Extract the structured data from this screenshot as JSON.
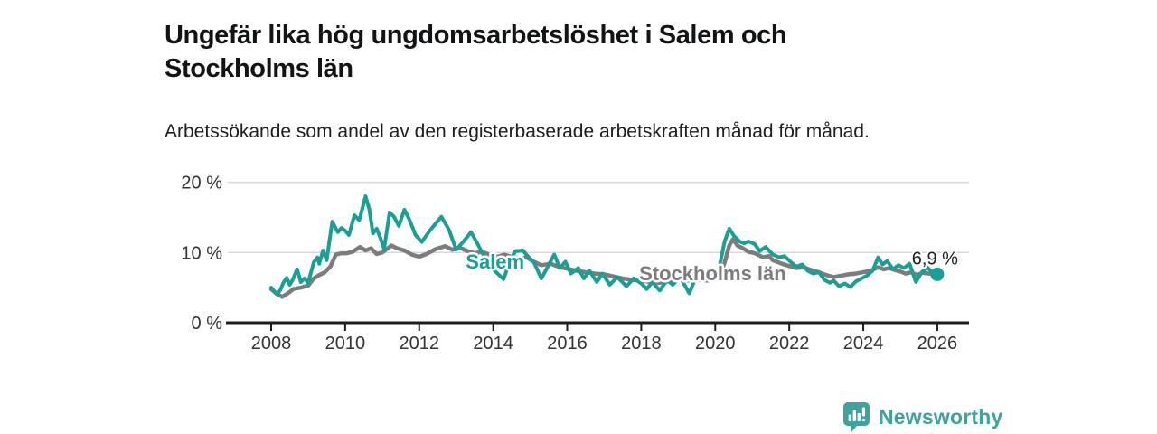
{
  "header": {
    "title": "Ungefär lika hög ungdomsarbetslöshet i Salem och Stockholms län",
    "subtitle": "Arbetssökande som andel av den registerbaserade arbetskraften månad för månad."
  },
  "colors": {
    "salem_teal": "#18a096",
    "stockholm_gray": "#7c7c7c",
    "grid": "#d9d9d9",
    "axis": "#1c1c1c",
    "tick_label": "#333333",
    "brand_teal": "#3da39c"
  },
  "chart": {
    "y_ticks": [
      {
        "value": 0,
        "label": "0 %"
      },
      {
        "value": 10,
        "label": "10 %"
      },
      {
        "value": 20,
        "label": "20 %"
      }
    ],
    "x_ticks": [
      {
        "value": 2008,
        "label": "2008"
      },
      {
        "value": 2010,
        "label": "2010"
      },
      {
        "value": 2012,
        "label": "2012"
      },
      {
        "value": 2014,
        "label": "2014"
      },
      {
        "value": 2016,
        "label": "2016"
      },
      {
        "value": 2018,
        "label": "2018"
      },
      {
        "value": 2020,
        "label": "2020"
      },
      {
        "value": 2022,
        "label": "2022"
      },
      {
        "value": 2024,
        "label": "2024"
      },
      {
        "value": 2026,
        "label": "2026"
      }
    ],
    "series_labels": [
      {
        "text": "Salem",
        "x": 2014.05,
        "baseline_value": 7.75,
        "color": "#18a096"
      },
      {
        "text": "Stockholms län",
        "x": 2019.93,
        "baseline_value": 6.05,
        "color": "#7c7c7c"
      }
    ],
    "end_label": {
      "text": "6,9 %",
      "x": 2026.05,
      "value": 8.3
    }
  },
  "chart_data": {
    "type": "line",
    "title": "Ungefär lika hög ungdomsarbetslöshet i Salem och Stockholms län",
    "subtitle": "Arbetssökande som andel av den registerbaserade arbetskraften månad för månad.",
    "unit": "%",
    "xlim": [
      2006.9,
      2026.8
    ],
    "ylim": [
      0,
      20
    ],
    "grid": true,
    "legend_position": "inline-labels",
    "end_point": {
      "series": "Salem",
      "x": 2026.0,
      "y": 6.9,
      "label": "6,9 %"
    },
    "series": [
      {
        "name": "Salem",
        "color": "#18a096",
        "points": [
          [
            2008.0,
            5.0
          ],
          [
            2008.1,
            4.4
          ],
          [
            2008.17,
            4.1
          ],
          [
            2008.25,
            4.7
          ],
          [
            2008.33,
            5.7
          ],
          [
            2008.42,
            6.4
          ],
          [
            2008.5,
            5.4
          ],
          [
            2008.58,
            6.1
          ],
          [
            2008.7,
            7.6
          ],
          [
            2008.8,
            5.8
          ],
          [
            2008.9,
            6.3
          ],
          [
            2009.0,
            5.7
          ],
          [
            2009.15,
            8.6
          ],
          [
            2009.25,
            9.3
          ],
          [
            2009.3,
            8.4
          ],
          [
            2009.4,
            10.3
          ],
          [
            2009.5,
            8.9
          ],
          [
            2009.65,
            14.4
          ],
          [
            2009.8,
            12.9
          ],
          [
            2009.9,
            13.5
          ],
          [
            2010.0,
            13.1
          ],
          [
            2010.1,
            12.5
          ],
          [
            2010.25,
            15.3
          ],
          [
            2010.38,
            14.6
          ],
          [
            2010.55,
            18.0
          ],
          [
            2010.65,
            16.2
          ],
          [
            2010.75,
            12.7
          ],
          [
            2010.85,
            13.4
          ],
          [
            2010.95,
            12.1
          ],
          [
            2011.05,
            10.5
          ],
          [
            2011.2,
            15.7
          ],
          [
            2011.32,
            15.1
          ],
          [
            2011.45,
            13.8
          ],
          [
            2011.6,
            16.1
          ],
          [
            2011.75,
            14.5
          ],
          [
            2011.9,
            12.5
          ],
          [
            2012.07,
            11.5
          ],
          [
            2012.3,
            13.2
          ],
          [
            2012.6,
            15.1
          ],
          [
            2012.8,
            13.3
          ],
          [
            2013.0,
            10.4
          ],
          [
            2013.2,
            11.6
          ],
          [
            2013.4,
            12.9
          ],
          [
            2013.6,
            11.0
          ],
          [
            2013.8,
            9.0
          ],
          [
            2014.0,
            7.6
          ],
          [
            2014.28,
            6.2
          ],
          [
            2014.45,
            8.8
          ],
          [
            2014.6,
            10.2
          ],
          [
            2014.8,
            10.3
          ],
          [
            2014.95,
            9.4
          ],
          [
            2015.1,
            8.6
          ],
          [
            2015.3,
            6.3
          ],
          [
            2015.65,
            9.7
          ],
          [
            2015.8,
            7.8
          ],
          [
            2015.95,
            8.7
          ],
          [
            2016.1,
            7.0
          ],
          [
            2016.3,
            7.8
          ],
          [
            2016.45,
            6.3
          ],
          [
            2016.6,
            7.4
          ],
          [
            2016.8,
            5.8
          ],
          [
            2016.95,
            7.0
          ],
          [
            2017.15,
            5.4
          ],
          [
            2017.35,
            6.5
          ],
          [
            2017.6,
            5.2
          ],
          [
            2017.8,
            6.3
          ],
          [
            2018.0,
            5.6
          ],
          [
            2018.15,
            4.8
          ],
          [
            2018.3,
            5.8
          ],
          [
            2018.5,
            4.6
          ],
          [
            2018.7,
            6.1
          ],
          [
            2018.85,
            5.4
          ],
          [
            2019.05,
            6.5
          ],
          [
            2019.3,
            4.2
          ],
          [
            2019.5,
            6.8
          ],
          [
            2019.65,
            7.2
          ],
          [
            2019.8,
            6.6
          ],
          [
            2019.95,
            6.3
          ],
          [
            2020.05,
            6.8
          ],
          [
            2020.15,
            8.9
          ],
          [
            2020.25,
            11.5
          ],
          [
            2020.38,
            13.4
          ],
          [
            2020.5,
            12.4
          ],
          [
            2020.65,
            11.6
          ],
          [
            2020.78,
            11.3
          ],
          [
            2020.9,
            11.6
          ],
          [
            2021.07,
            11.2
          ],
          [
            2021.2,
            10.2
          ],
          [
            2021.36,
            10.8
          ],
          [
            2021.56,
            9.7
          ],
          [
            2021.73,
            9.3
          ],
          [
            2021.87,
            9.5
          ],
          [
            2022.05,
            8.6
          ],
          [
            2022.2,
            8.0
          ],
          [
            2022.35,
            8.3
          ],
          [
            2022.5,
            7.4
          ],
          [
            2022.65,
            7.0
          ],
          [
            2022.8,
            7.2
          ],
          [
            2022.95,
            6.1
          ],
          [
            2023.1,
            5.7
          ],
          [
            2023.2,
            6.0
          ],
          [
            2023.35,
            5.2
          ],
          [
            2023.5,
            5.6
          ],
          [
            2023.65,
            5.1
          ],
          [
            2023.8,
            5.9
          ],
          [
            2023.95,
            6.3
          ],
          [
            2024.1,
            6.7
          ],
          [
            2024.25,
            7.4
          ],
          [
            2024.4,
            9.3
          ],
          [
            2024.52,
            8.3
          ],
          [
            2024.65,
            8.8
          ],
          [
            2024.8,
            7.6
          ],
          [
            2024.95,
            8.2
          ],
          [
            2025.1,
            7.8
          ],
          [
            2025.25,
            8.4
          ],
          [
            2025.42,
            5.8
          ],
          [
            2025.58,
            7.2
          ],
          [
            2025.72,
            7.9
          ],
          [
            2025.88,
            7.1
          ],
          [
            2026.0,
            6.9
          ]
        ]
      },
      {
        "name": "Stockholms län",
        "color": "#7c7c7c",
        "points": [
          [
            2008.0,
            4.8
          ],
          [
            2008.15,
            4.1
          ],
          [
            2008.3,
            3.7
          ],
          [
            2008.45,
            4.2
          ],
          [
            2008.6,
            4.8
          ],
          [
            2008.8,
            5.0
          ],
          [
            2009.0,
            5.3
          ],
          [
            2009.15,
            6.3
          ],
          [
            2009.3,
            6.8
          ],
          [
            2009.45,
            7.2
          ],
          [
            2009.6,
            8.0
          ],
          [
            2009.75,
            9.7
          ],
          [
            2009.9,
            9.9
          ],
          [
            2010.05,
            9.9
          ],
          [
            2010.2,
            10.1
          ],
          [
            2010.4,
            10.8
          ],
          [
            2010.55,
            10.3
          ],
          [
            2010.7,
            10.6
          ],
          [
            2010.85,
            9.8
          ],
          [
            2011.0,
            10.0
          ],
          [
            2011.25,
            11.0
          ],
          [
            2011.4,
            10.6
          ],
          [
            2011.6,
            10.3
          ],
          [
            2011.8,
            9.7
          ],
          [
            2012.0,
            9.4
          ],
          [
            2012.2,
            9.8
          ],
          [
            2012.45,
            10.5
          ],
          [
            2012.7,
            10.9
          ],
          [
            2012.9,
            10.4
          ],
          [
            2013.1,
            10.7
          ],
          [
            2013.3,
            10.2
          ],
          [
            2013.5,
            9.9
          ],
          [
            2013.7,
            10.1
          ],
          [
            2013.9,
            9.7
          ],
          [
            2014.1,
            9.4
          ],
          [
            2014.3,
            9.7
          ],
          [
            2014.5,
            9.4
          ],
          [
            2014.7,
            9.2
          ],
          [
            2014.9,
            9.3
          ],
          [
            2015.1,
            8.7
          ],
          [
            2015.3,
            8.2
          ],
          [
            2015.55,
            8.4
          ],
          [
            2015.8,
            7.9
          ],
          [
            2016.0,
            7.7
          ],
          [
            2016.25,
            7.4
          ],
          [
            2016.5,
            7.2
          ],
          [
            2016.75,
            7.0
          ],
          [
            2017.0,
            6.9
          ],
          [
            2017.25,
            6.6
          ],
          [
            2017.5,
            6.3
          ],
          [
            2017.75,
            6.1
          ],
          [
            2018.0,
            6.0
          ],
          [
            2018.25,
            5.8
          ],
          [
            2018.5,
            5.7
          ],
          [
            2018.75,
            5.9
          ],
          [
            2019.0,
            6.2
          ],
          [
            2019.25,
            6.0
          ],
          [
            2019.5,
            6.1
          ],
          [
            2019.75,
            6.0
          ],
          [
            2019.95,
            6.1
          ],
          [
            2020.1,
            6.4
          ],
          [
            2020.25,
            8.5
          ],
          [
            2020.38,
            11.0
          ],
          [
            2020.48,
            11.9
          ],
          [
            2020.6,
            11.0
          ],
          [
            2020.75,
            10.6
          ],
          [
            2020.9,
            10.1
          ],
          [
            2021.07,
            9.9
          ],
          [
            2021.3,
            9.3
          ],
          [
            2021.45,
            9.5
          ],
          [
            2021.56,
            8.9
          ],
          [
            2021.8,
            8.4
          ],
          [
            2022.05,
            8.0
          ],
          [
            2022.2,
            7.8
          ],
          [
            2022.4,
            7.9
          ],
          [
            2022.6,
            7.5
          ],
          [
            2022.8,
            7.2
          ],
          [
            2023.0,
            6.8
          ],
          [
            2023.2,
            6.5
          ],
          [
            2023.4,
            6.7
          ],
          [
            2023.6,
            6.9
          ],
          [
            2023.8,
            7.0
          ],
          [
            2024.0,
            7.2
          ],
          [
            2024.2,
            7.4
          ],
          [
            2024.4,
            7.9
          ],
          [
            2024.55,
            7.6
          ],
          [
            2024.7,
            7.8
          ],
          [
            2024.85,
            7.5
          ],
          [
            2025.0,
            7.3
          ],
          [
            2025.15,
            7.0
          ],
          [
            2025.3,
            7.2
          ],
          [
            2025.45,
            6.8
          ],
          [
            2025.6,
            7.1
          ],
          [
            2025.78,
            7.0
          ],
          [
            2025.92,
            7.0
          ]
        ]
      }
    ]
  },
  "footer": {
    "brand": "Newsworthy"
  }
}
